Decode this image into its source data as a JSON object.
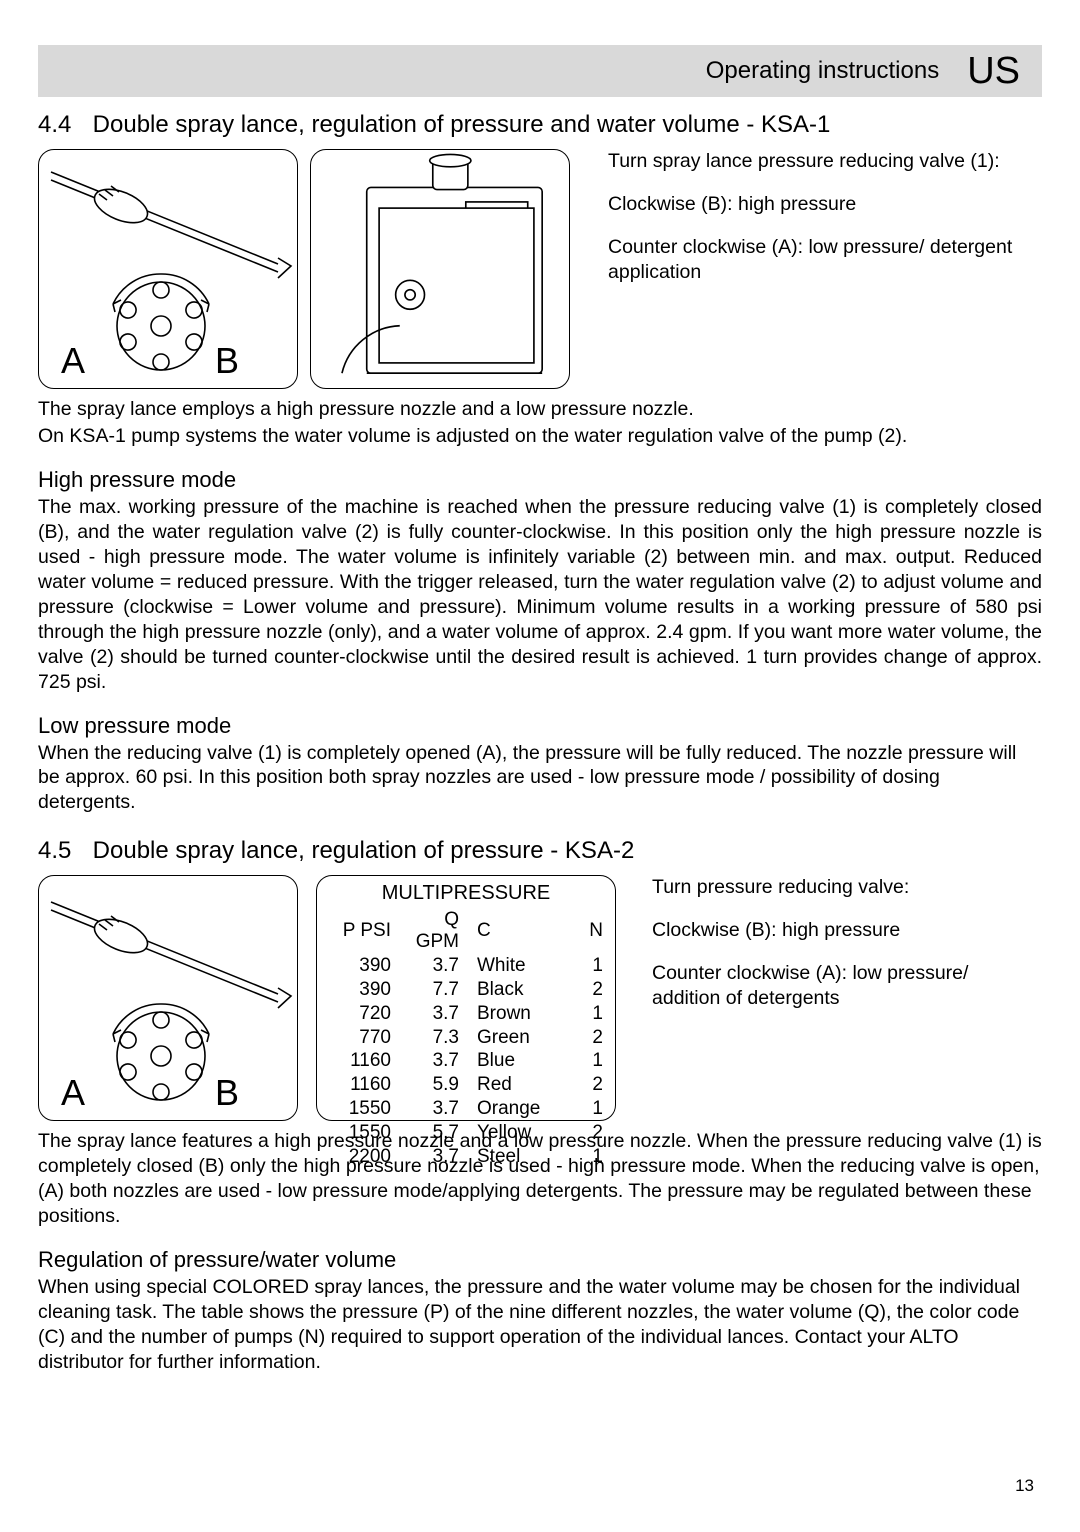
{
  "header": {
    "title": "Operating instructions",
    "region": "US",
    "bar_bg": "#d9d9d9"
  },
  "section_44": {
    "number": "4.4",
    "title": "Double spray lance, regulation of pressure and water volume - KSA-1",
    "valve_labels": {
      "left": "A",
      "right": "B"
    },
    "right_paras": [
      "Turn spray lance pressure reducing valve (1):",
      "Clockwise (B): high pressure",
      "Counter clockwise (A): low pressure/ detergent application"
    ],
    "after_fig_paras": [
      "The spray lance employs a high pressure nozzle and a low pressure nozzle.",
      "On KSA-1 pump systems the water volume is adjusted on the water regulation valve of the pump (2)."
    ],
    "hp_title": "High pressure mode",
    "hp_body": "The max. working pressure of the machine is reached when the pressure reducing valve (1) is completely closed (B), and the water regulation valve (2) is fully counter-clockwise. In this position only the high pressure nozzle is used - high pressure mode. The water volume is infinitely variable (2) between min. and max. output.  Reduced water volume = reduced pressure.  With the trigger released, turn the water regulation valve (2) to adjust volume and pressure (clockwise = Lower volume and pressure). Minimum volume results in a working pressure of 580 psi through the high pressure nozzle (only), and a water volume of approx. 2.4 gpm. If you want more water volume, the valve (2) should be turned counter-clockwise until the desired result is achieved. 1 turn provides change of approx. 725 psi.",
    "lp_title": "Low pressure mode",
    "lp_body": "When the reducing valve (1) is completely opened (A), the pressure will be fully reduced. The nozzle pressure will be approx. 60 psi. In this position both spray nozzles are used - low pressure mode / possibility of dosing detergents."
  },
  "section_45": {
    "number": "4.5",
    "title": "Double spray lance, regulation of pressure - KSA-2",
    "valve_labels": {
      "left": "A",
      "right": "B"
    },
    "mp_title": "MULTIPRESSURE",
    "mp_headers": [
      "P PSI",
      "Q GPM",
      "C",
      "N"
    ],
    "mp_rows": [
      [
        "390",
        "3.7",
        "White",
        "1"
      ],
      [
        "390",
        "7.7",
        "Black",
        "2"
      ],
      [
        "720",
        "3.7",
        "Brown",
        "1"
      ],
      [
        "770",
        "7.3",
        "Green",
        "2"
      ],
      [
        "1160",
        "3.7",
        "Blue",
        "1"
      ],
      [
        "1160",
        "5.9",
        "Red",
        "2"
      ],
      [
        "1550",
        "3.7",
        "Orange",
        "1"
      ],
      [
        "1550",
        "5.7",
        "Yellow",
        "2"
      ],
      [
        "2200",
        "3.7",
        "Steel",
        "1"
      ]
    ],
    "right_paras": [
      "Turn pressure reducing valve:",
      "Clockwise (B): high pressure",
      "Counter clockwise (A): low pressure/ addition of detergents"
    ],
    "after_fig_body": "The spray lance features a high pressure nozzle and a low pressure nozzle. When the pressure reducing valve (1) is completely closed (B) only the high pressure nozzle is used - high pressure mode. When the reducing valve is open, (A) both nozzles are used - low pressure mode/applying detergents. The pressure may be regulated between these positions.",
    "reg_title": "Regulation of pressure/water volume",
    "reg_body": "When using special COLORED spray lances, the pressure and the water volume may be chosen for the individual cleaning task. The table shows the pressure (P) of the nine different nozzles, the water volume (Q), the color code (C) and the number of pumps (N) required to support operation of the individual lances. Contact your ALTO distributor for further information."
  },
  "page_number": "13",
  "diagram_style": {
    "stroke": "#000000",
    "fill": "#ffffff",
    "stroke_width": 1.6,
    "border_radius": 16
  }
}
